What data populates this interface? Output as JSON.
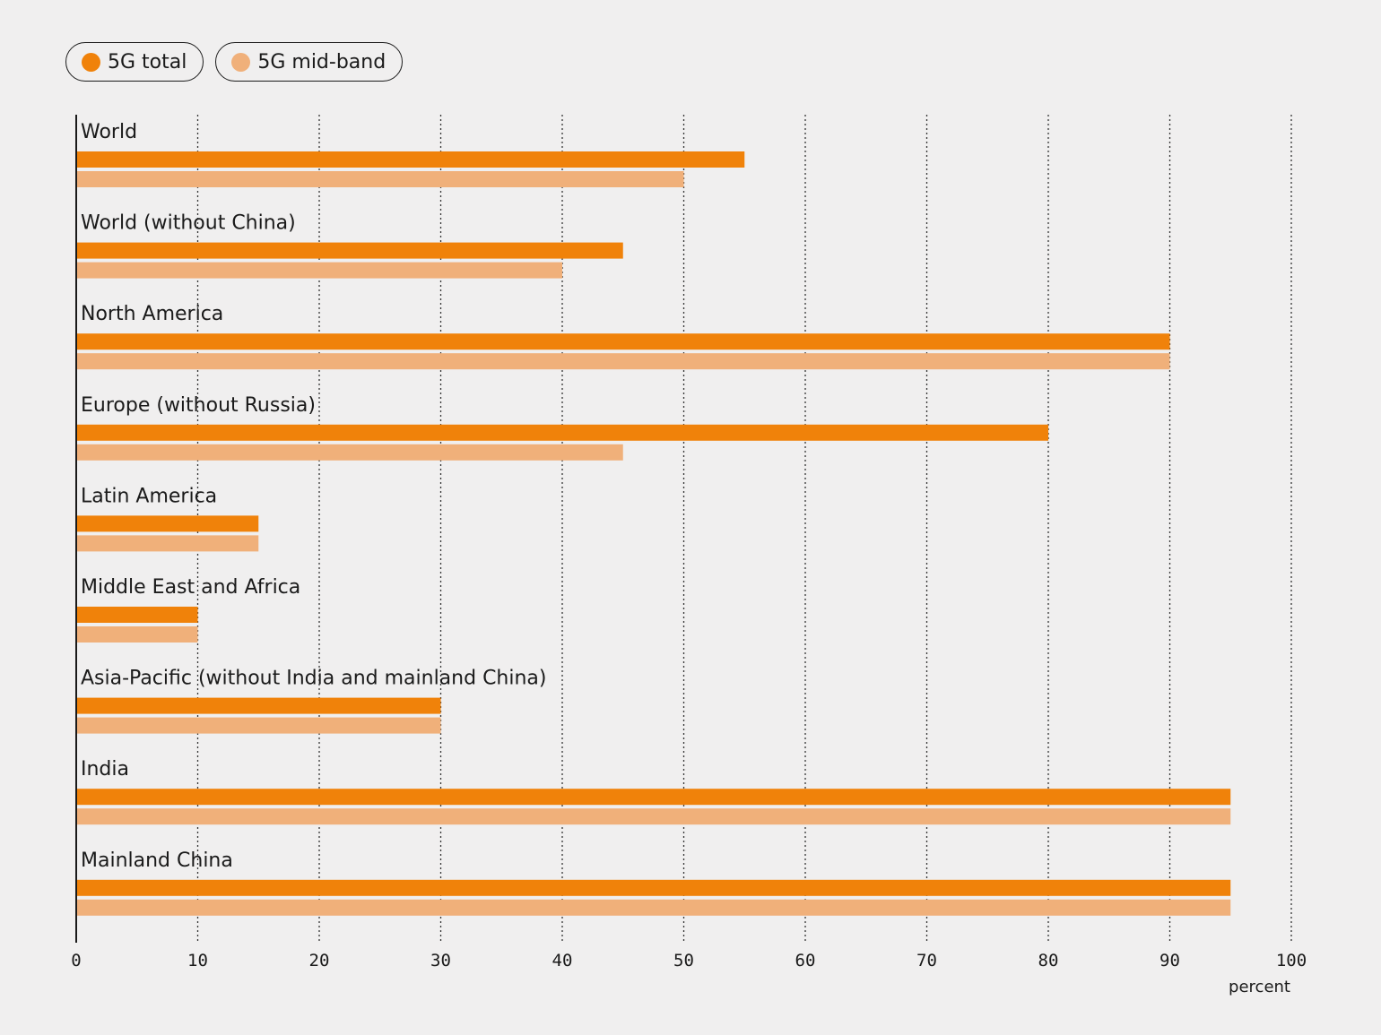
{
  "chart_data": {
    "type": "bar",
    "orientation": "horizontal",
    "categories": [
      "World",
      "World (without China)",
      "North America",
      "Europe (without Russia)",
      "Latin America",
      "Middle East and Africa",
      "Asia-Pacific (without India and mainland China)",
      "India",
      "Mainland China"
    ],
    "series": [
      {
        "name": "5G total",
        "color": "#f0820a",
        "values": [
          55,
          45,
          90,
          80,
          15,
          10,
          30,
          95,
          95
        ]
      },
      {
        "name": "5G mid-band",
        "color": "#f0b07a",
        "values": [
          50,
          40,
          90,
          45,
          15,
          10,
          30,
          95,
          95
        ]
      }
    ],
    "xlim": [
      0,
      100
    ],
    "xticks": [
      0,
      10,
      20,
      30,
      40,
      50,
      60,
      70,
      80,
      90,
      100
    ],
    "xlabel": "percent",
    "grid": "vertical-dotted",
    "legend_position": "top-left"
  }
}
